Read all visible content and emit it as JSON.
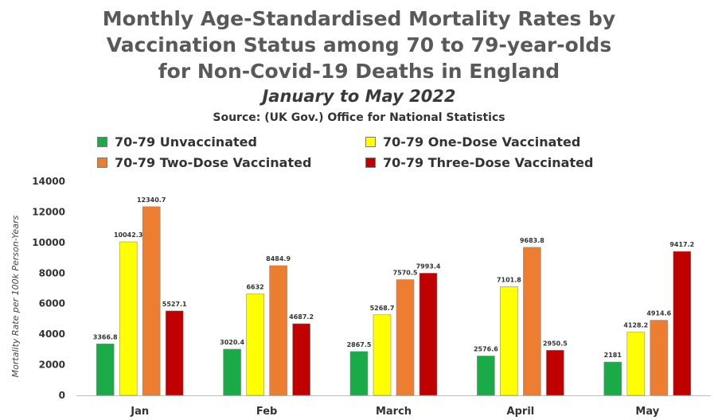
{
  "chart_data": {
    "type": "bar",
    "title": [
      "Monthly Age-Standardised Mortality Rates by",
      "Vaccination Status among 70 to 79-year-olds",
      "for Non-Covid-19 Deaths in England"
    ],
    "subtitle": "January to May 2022",
    "source": "Source: (UK Gov.) Office for National Statistics",
    "ylabel": "Mortality Rate per 100k Person-Years",
    "xlabel": "",
    "ylim": [
      0,
      14000
    ],
    "yticks": [
      0,
      2000,
      4000,
      6000,
      8000,
      10000,
      12000,
      14000
    ],
    "grid": false,
    "legend_position": "top",
    "categories": [
      "Jan",
      "Feb",
      "March",
      "April",
      "May"
    ],
    "series": [
      {
        "name": "70-79 Unvaccinated",
        "color": "#1aaa48",
        "values": [
          3366.8,
          3020.4,
          2867.5,
          2576.6,
          2181
        ],
        "labels": [
          "3366.8",
          "3020.4",
          "2867.5",
          "2576.6",
          "2181"
        ]
      },
      {
        "name": "70-79 One-Dose Vaccinated",
        "color": "#ffff00",
        "values": [
          10042.3,
          6632,
          5268.7,
          7101.8,
          4128.2
        ],
        "labels": [
          "10042.3",
          "6632",
          "5268.7",
          "7101.8",
          "4128.2"
        ]
      },
      {
        "name": "70-79 Two-Dose Vaccinated",
        "color": "#ed7d31",
        "values": [
          12340.7,
          8484.9,
          7570.5,
          9683.8,
          4914.6
        ],
        "labels": [
          "12340.7",
          "8484.9",
          "7570.5",
          "9683.8",
          "4914.6"
        ]
      },
      {
        "name": "70-79 Three-Dose Vaccinated",
        "color": "#c00000",
        "values": [
          5527.1,
          4687.2,
          7993.4,
          2950.5,
          9417.2
        ],
        "labels": [
          "5527.1",
          "4687.2",
          "7993.4",
          "2950.5",
          "9417.2"
        ]
      }
    ]
  }
}
